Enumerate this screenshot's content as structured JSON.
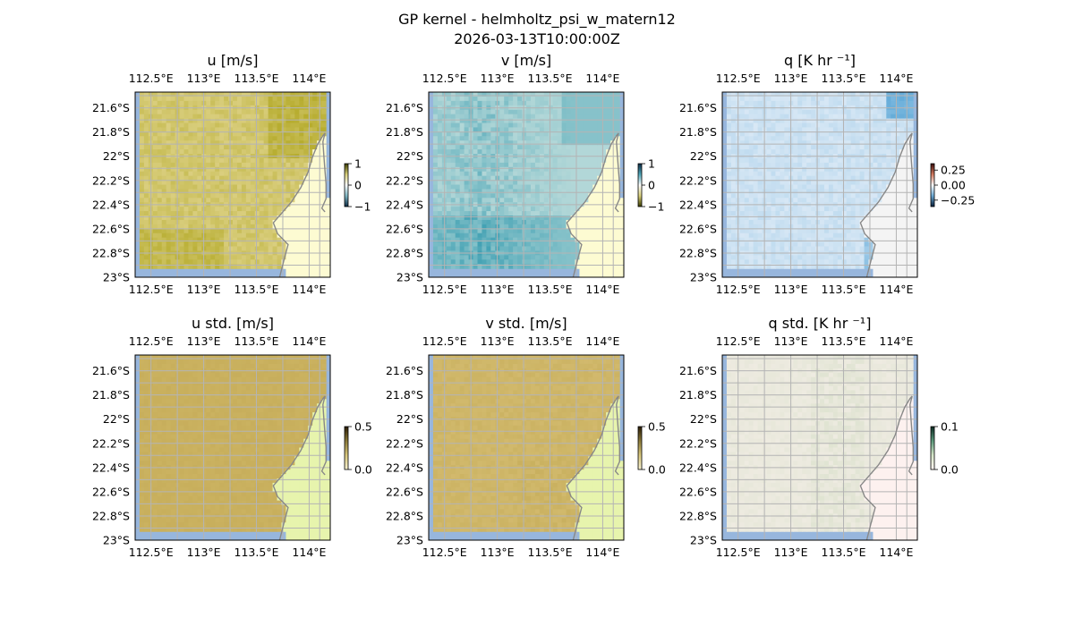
{
  "figure": {
    "title": "GP kernel - helmholtz_psi_w_matern12",
    "subtitle": "2026-03-13T10:00:00Z"
  },
  "chart_data": [
    {
      "type": "heatmap",
      "title": "u [m/s]",
      "variable": "u",
      "xticks": [
        "112.5°E",
        "113°E",
        "113.5°E",
        "114°E"
      ],
      "yticks": [
        "21.6°S",
        "21.8°S",
        "22°S",
        "22.2°S",
        "22.4°S",
        "22.6°S",
        "22.8°S",
        "23°S"
      ],
      "xlim": [
        112.35,
        114.2
      ],
      "ylim": [
        -23.0,
        -21.47
      ],
      "colorbar": {
        "ticks": [
          "1",
          "0",
          "−1"
        ],
        "range": [
          -1,
          1
        ]
      },
      "colors": {
        "land": "#fdfbd2",
        "ocean_base": "#e6da9a",
        "strong": "#b6ac2e"
      }
    },
    {
      "type": "heatmap",
      "title": "v [m/s]",
      "variable": "v",
      "xticks": [
        "112.5°E",
        "113°E",
        "113.5°E",
        "114°E"
      ],
      "yticks": [
        "21.6°S",
        "21.8°S",
        "22°S",
        "22.2°S",
        "22.4°S",
        "22.6°S",
        "22.8°S",
        "23°S"
      ],
      "xlim": [
        112.35,
        114.2
      ],
      "ylim": [
        -23.0,
        -21.47
      ],
      "colorbar": {
        "ticks": [
          "1",
          "0",
          "−1"
        ],
        "range": [
          -1,
          1
        ]
      },
      "colors": {
        "land": "#fdfbd2",
        "ocean_base": "#cfe5e1",
        "strong": "#3e9fb2"
      }
    },
    {
      "type": "heatmap",
      "title": "q [K hr ⁻¹]",
      "variable": "q",
      "xticks": [
        "112.5°E",
        "113°E",
        "113.5°E",
        "114°E"
      ],
      "yticks": [
        "21.6°S",
        "21.8°S",
        "22°S",
        "22.2°S",
        "22.4°S",
        "22.6°S",
        "22.8°S",
        "23°S"
      ],
      "xlim": [
        112.35,
        114.2
      ],
      "ylim": [
        -23.0,
        -21.47
      ],
      "colorbar": {
        "ticks": [
          "0.25",
          "0.00",
          "−0.25"
        ],
        "range": [
          -0.35,
          0.35
        ]
      },
      "colors": {
        "land": "#f4f4f4",
        "ocean_base": "#e4eef8",
        "strong": "#4b9fd3"
      }
    },
    {
      "type": "heatmap",
      "title": "u std. [m/s]",
      "variable": "u_std",
      "xticks": [
        "112.5°E",
        "113°E",
        "113.5°E",
        "114°E"
      ],
      "yticks": [
        "21.6°S",
        "21.8°S",
        "22°S",
        "22.2°S",
        "22.4°S",
        "22.6°S",
        "22.8°S",
        "23°S"
      ],
      "xlim": [
        112.35,
        114.2
      ],
      "ylim": [
        -23.0,
        -21.47
      ],
      "colorbar": {
        "ticks": [
          "0.5",
          "0.0"
        ],
        "range": [
          0,
          0.5
        ]
      },
      "colors": {
        "land": "#e7f4ad",
        "ocean_base": "#cfb766",
        "strong": "#c1a753"
      }
    },
    {
      "type": "heatmap",
      "title": "v std. [m/s]",
      "variable": "v_std",
      "xticks": [
        "112.5°E",
        "113°E",
        "113.5°E",
        "114°E"
      ],
      "yticks": [
        "21.6°S",
        "21.8°S",
        "22°S",
        "22.2°S",
        "22.4°S",
        "22.6°S",
        "22.8°S",
        "23°S"
      ],
      "xlim": [
        112.35,
        114.2
      ],
      "ylim": [
        -23.0,
        -21.47
      ],
      "colorbar": {
        "ticks": [
          "0.5",
          "0.0"
        ],
        "range": [
          0,
          0.5
        ]
      },
      "colors": {
        "land": "#e7f4ad",
        "ocean_base": "#d8c077",
        "strong": "#c3aa55"
      }
    },
    {
      "type": "heatmap",
      "title": "q std. [K hr ⁻¹]",
      "variable": "q_std",
      "xticks": [
        "112.5°E",
        "113°E",
        "113.5°E",
        "114°E"
      ],
      "yticks": [
        "21.6°S",
        "21.8°S",
        "22°S",
        "22.2°S",
        "22.4°S",
        "22.6°S",
        "22.8°S",
        "23°S"
      ],
      "xlim": [
        112.35,
        114.2
      ],
      "ylim": [
        -23.0,
        -21.47
      ],
      "colorbar": {
        "ticks": [
          "0.1",
          "0.0"
        ],
        "range": [
          0,
          0.1
        ]
      },
      "colors": {
        "land": "#fdf1ef",
        "ocean_base": "#f2ede5",
        "strong": "#d7dfc9"
      }
    }
  ],
  "colors": {
    "sea_edge": "#97b6dd",
    "grid": "#b4b4b4",
    "coastline": "#888888"
  }
}
